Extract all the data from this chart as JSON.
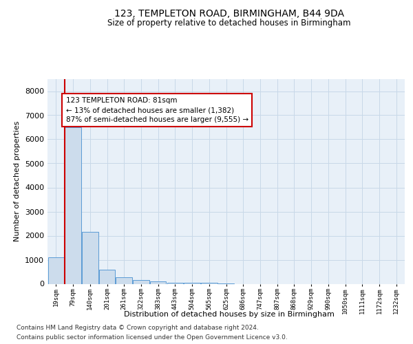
{
  "title1": "123, TEMPLETON ROAD, BIRMINGHAM, B44 9DA",
  "title2": "Size of property relative to detached houses in Birmingham",
  "xlabel": "Distribution of detached houses by size in Birmingham",
  "ylabel": "Number of detached properties",
  "categories": [
    "19sqm",
    "79sqm",
    "140sqm",
    "201sqm",
    "261sqm",
    "322sqm",
    "383sqm",
    "443sqm",
    "504sqm",
    "565sqm",
    "625sqm",
    "686sqm",
    "747sqm",
    "807sqm",
    "868sqm",
    "929sqm",
    "990sqm",
    "1050sqm",
    "1111sqm",
    "1172sqm",
    "1232sqm"
  ],
  "values": [
    1100,
    6500,
    2150,
    580,
    270,
    150,
    90,
    55,
    45,
    35,
    25,
    0,
    0,
    0,
    0,
    0,
    0,
    0,
    0,
    0,
    0
  ],
  "bar_color": "#ccdcec",
  "bar_edge_color": "#5b9bd5",
  "annotation_text": "123 TEMPLETON ROAD: 81sqm\n← 13% of detached houses are smaller (1,382)\n87% of semi-detached houses are larger (9,555) →",
  "annotation_box_color": "#ffffff",
  "annotation_box_edge_color": "#cc0000",
  "property_line_color": "#cc0000",
  "ylim": [
    0,
    8500
  ],
  "yticks": [
    0,
    1000,
    2000,
    3000,
    4000,
    5000,
    6000,
    7000,
    8000
  ],
  "footer1": "Contains HM Land Registry data © Crown copyright and database right 2024.",
  "footer2": "Contains public sector information licensed under the Open Government Licence v3.0.",
  "grid_color": "#c8d8e8",
  "fig_bg_color": "#ffffff",
  "axes_bg_color": "#e8f0f8"
}
